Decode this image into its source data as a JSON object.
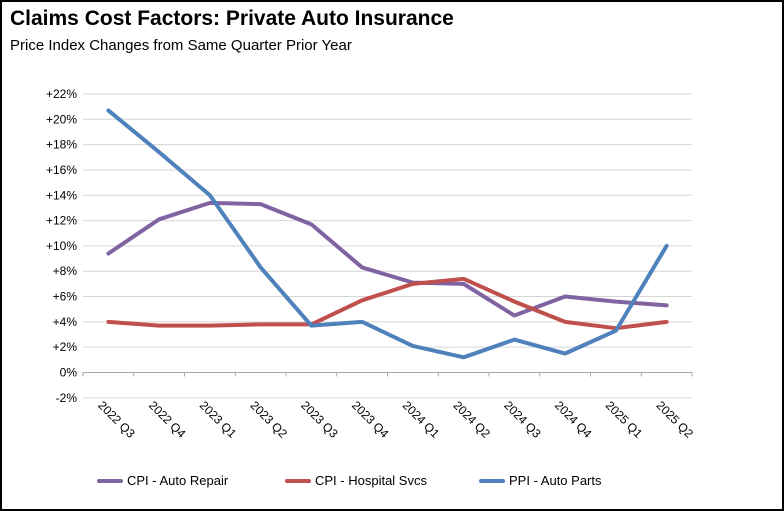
{
  "header": {
    "title": "Claims Cost Factors: Private Auto Insurance",
    "subtitle": "Price Index Changes from Same Quarter Prior Year"
  },
  "chart_data": {
    "type": "line",
    "categories": [
      "2022 Q3",
      "2022 Q4",
      "2023 Q1",
      "2023 Q2",
      "2023 Q3",
      "2023 Q4",
      "2024 Q1",
      "2024 Q2",
      "2024 Q3",
      "2024 Q4",
      "2025 Q1",
      "2025 Q2"
    ],
    "series": [
      {
        "name": "CPI - Auto Repair",
        "color": "#8064A2",
        "values": [
          9.4,
          12.1,
          13.4,
          13.3,
          11.7,
          8.3,
          7.1,
          7.0,
          4.5,
          6.0,
          5.6,
          5.3
        ]
      },
      {
        "name": "CPI - Hospital Svcs",
        "color": "#C0504D",
        "values": [
          4.0,
          3.7,
          3.7,
          3.8,
          3.8,
          5.7,
          7.0,
          7.4,
          5.6,
          4.0,
          3.5,
          4.0
        ]
      },
      {
        "name": "PPI - Auto Parts",
        "color": "#4F81BD",
        "values": [
          20.7,
          17.4,
          14.0,
          8.3,
          3.7,
          4.0,
          2.1,
          1.2,
          2.6,
          1.5,
          3.3,
          10.0
        ]
      }
    ],
    "title": "Claims Cost Factors: Private Auto Insurance",
    "subtitle": "Price Index Changes from Same Quarter Prior Year",
    "xlabel": "",
    "ylabel": "",
    "ylim": [
      -2,
      22
    ],
    "ytick_step": 2,
    "ytick_format": "signed_percent",
    "grid": true,
    "legend_position": "bottom",
    "colors": {
      "gridline": "#D6D6D6",
      "axis": "#A6A6A6",
      "text": "#000000",
      "background": "#FFFFFF"
    }
  }
}
